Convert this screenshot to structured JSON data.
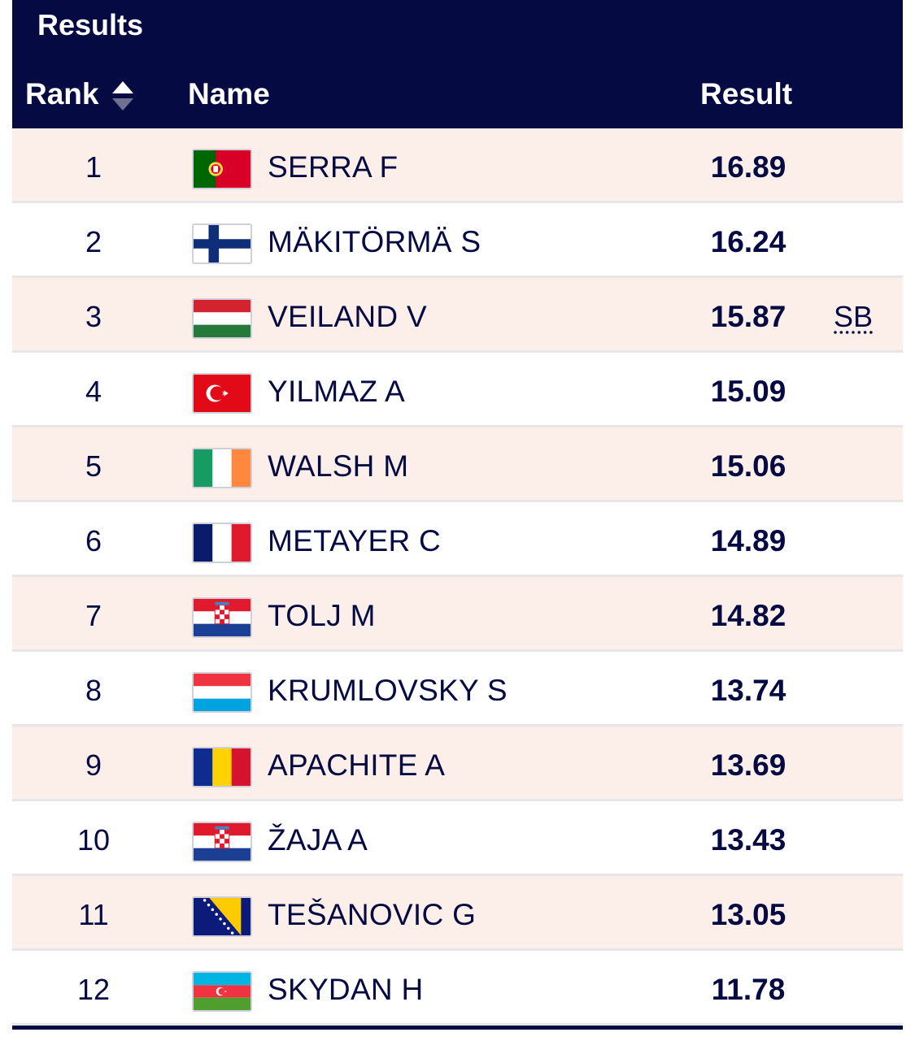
{
  "title": "Results",
  "columns": {
    "rank": "Rank",
    "name": "Name",
    "result": "Result"
  },
  "colors": {
    "header_bg": "#050a42",
    "row_alt_bg": "#fcefe9",
    "text": "#050a42"
  },
  "rows": [
    {
      "rank": "1",
      "flag": "portugal-flag-icon",
      "name": "SERRA F",
      "result": "16.89",
      "note": ""
    },
    {
      "rank": "2",
      "flag": "finland-flag-icon",
      "name": "MÄKITÖRMÄ S",
      "result": "16.24",
      "note": ""
    },
    {
      "rank": "3",
      "flag": "hungary-flag-icon",
      "name": "VEILAND V",
      "result": "15.87",
      "note": "SB"
    },
    {
      "rank": "4",
      "flag": "turkey-flag-icon",
      "name": "YILMAZ A",
      "result": "15.09",
      "note": ""
    },
    {
      "rank": "5",
      "flag": "ireland-flag-icon",
      "name": "WALSH M",
      "result": "15.06",
      "note": ""
    },
    {
      "rank": "6",
      "flag": "france-flag-icon",
      "name": "METAYER C",
      "result": "14.89",
      "note": ""
    },
    {
      "rank": "7",
      "flag": "croatia-flag-icon",
      "name": "TOLJ M",
      "result": "14.82",
      "note": ""
    },
    {
      "rank": "8",
      "flag": "luxembourg-flag-icon",
      "name": "KRUMLOVSKY S",
      "result": "13.74",
      "note": ""
    },
    {
      "rank": "9",
      "flag": "romania-flag-icon",
      "name": "APACHITE A",
      "result": "13.69",
      "note": ""
    },
    {
      "rank": "10",
      "flag": "croatia-flag-icon",
      "name": "ŽAJA A",
      "result": "13.43",
      "note": ""
    },
    {
      "rank": "11",
      "flag": "bosnia-flag-icon",
      "name": "TEŠANOVIC G",
      "result": "13.05",
      "note": ""
    },
    {
      "rank": "12",
      "flag": "azerbaijan-flag-icon",
      "name": "SKYDAN H",
      "result": "11.78",
      "note": ""
    }
  ]
}
